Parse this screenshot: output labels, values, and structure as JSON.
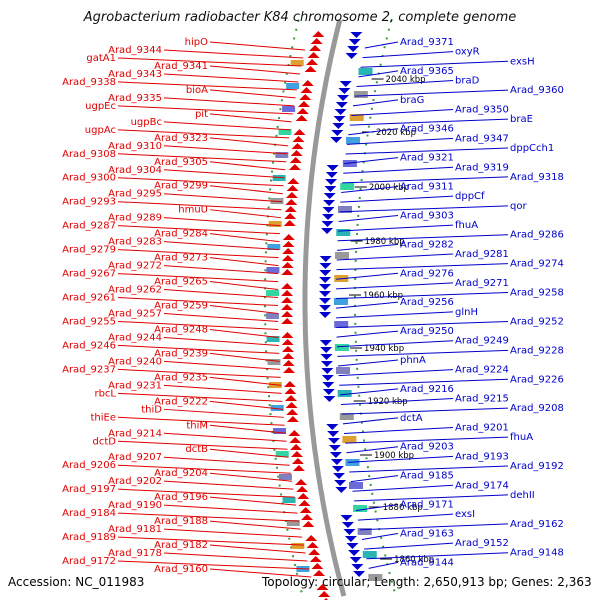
{
  "title": "Agrobacterium radiobacter K84 chromosome 2, complete genome",
  "accession": "Accession: NC_011983",
  "footer": "Topology: circular; Length: 2,650,913 bp; Genes: 2,363",
  "colors": {
    "forward": "#e00000",
    "reverse": "#0000cc",
    "backbone": "#999999",
    "ticks": "#3a9a3a"
  },
  "ticks": [
    "2040 kbp",
    "2020 kbp",
    "2000 kbp",
    "1980 kbp",
    "1960 kbp",
    "1940 kbp",
    "1920 kbp",
    "1900 kbp",
    "1880 kbp",
    "1860 kbp"
  ],
  "labels_left": [
    "hipO",
    "Arad_9344",
    "gatA1",
    "Arad_9341",
    "Arad_9343",
    "Arad_9338",
    "bioA",
    "Arad_9335",
    "ugpEc",
    "pit",
    "ugpBc",
    "ugpAc",
    "Arad_9323",
    "Arad_9310",
    "Arad_9308",
    "Arad_9305",
    "Arad_9304",
    "Arad_9300",
    "Arad_9299",
    "Arad_9295",
    "Arad_9293",
    "hmuU",
    "Arad_9289",
    "Arad_9287",
    "Arad_9284",
    "Arad_9283",
    "Arad_9279",
    "Arad_9273",
    "Arad_9272",
    "Arad_9267",
    "Arad_9265",
    "Arad_9262",
    "Arad_9261",
    "Arad_9259",
    "Arad_9257",
    "Arad_9255",
    "Arad_9248",
    "Arad_9244",
    "Arad_9246",
    "Arad_9239",
    "Arad_9240",
    "Arad_9237",
    "Arad_9235",
    "Arad_9231",
    "rbcL",
    "Arad_9222",
    "thiD",
    "thiEe",
    "thiM",
    "Arad_9214",
    "dctD",
    "dctB",
    "Arad_9207",
    "Arad_9206",
    "Arad_9204",
    "Arad_9202",
    "Arad_9197",
    "Arad_9196",
    "Arad_9190",
    "Arad_9184",
    "Arad_9188",
    "Arad_9181",
    "Arad_9189",
    "Arad_9182",
    "Arad_9178",
    "Arad_9172",
    "Arad_9160"
  ],
  "labels_right": [
    "Arad_9371",
    "oxyR",
    "exsH",
    "Arad_9365",
    "braD",
    "Arad_9360",
    "braG",
    "Arad_9350",
    "braE",
    "Arad_9346",
    "Arad_9347",
    "dppCch1",
    "Arad_9321",
    "Arad_9319",
    "Arad_9318",
    "Arad_9311",
    "dppCf",
    "qor",
    "Arad_9303",
    "fhuA",
    "Arad_9286",
    "Arad_9282",
    "Arad_9281",
    "Arad_9274",
    "Arad_9276",
    "Arad_9271",
    "Arad_9258",
    "Arad_9256",
    "glnH",
    "Arad_9252",
    "Arad_9250",
    "Arad_9249",
    "Arad_9228",
    "phnA",
    "Arad_9224",
    "Arad_9226",
    "Arad_9216",
    "Arad_9215",
    "Arad_9208",
    "dctA",
    "Arad_9201",
    "fhuA",
    "Arad_9203",
    "Arad_9193",
    "Arad_9192",
    "Arad_9185",
    "Arad_9174",
    "dehII",
    "Arad_9171",
    "exsI",
    "Arad_9162",
    "Arad_9163",
    "Arad_9152",
    "Arad_9148",
    "Arad_9144"
  ]
}
